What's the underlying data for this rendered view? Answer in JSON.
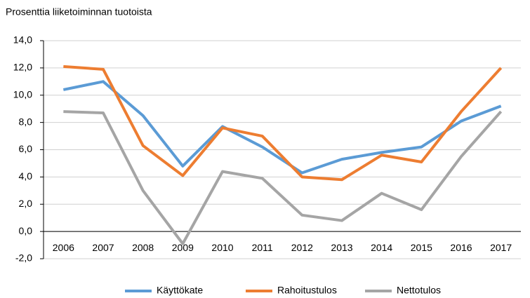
{
  "chart_data": {
    "type": "line",
    "subtitle": "Prosenttia liiketoiminnan tuotoista",
    "categories": [
      "2006",
      "2007",
      "2008",
      "2009",
      "2010",
      "2011",
      "2012",
      "2013",
      "2014",
      "2015",
      "2016",
      "2017"
    ],
    "series": [
      {
        "name": "Käyttökate",
        "color": "#5b9bd5",
        "values": [
          10.4,
          11.0,
          8.5,
          4.8,
          7.7,
          6.2,
          4.3,
          5.3,
          5.8,
          6.2,
          8.1,
          9.2
        ]
      },
      {
        "name": "Rahoitustulos",
        "color": "#ed7d31",
        "values": [
          12.1,
          11.9,
          6.3,
          4.1,
          7.6,
          7.0,
          4.0,
          3.8,
          5.6,
          5.1,
          8.8,
          12.0
        ]
      },
      {
        "name": "Nettotulos",
        "color": "#a5a5a5",
        "values": [
          8.8,
          8.7,
          3.0,
          -0.9,
          4.4,
          3.9,
          1.2,
          0.8,
          2.8,
          1.6,
          5.5,
          8.8
        ]
      }
    ],
    "ylim": [
      -2,
      14
    ],
    "yticks": [
      {
        "value": -2,
        "label": "-2,0"
      },
      {
        "value": 0,
        "label": "0,0"
      },
      {
        "value": 2,
        "label": "2,0"
      },
      {
        "value": 4,
        "label": "4,0"
      },
      {
        "value": 6,
        "label": "6,0"
      },
      {
        "value": 8,
        "label": "8,0"
      },
      {
        "value": 10,
        "label": "10,0"
      },
      {
        "value": 12,
        "label": "12,0"
      },
      {
        "value": 14,
        "label": "14,0"
      }
    ],
    "grid": true,
    "legend": "bottom"
  }
}
